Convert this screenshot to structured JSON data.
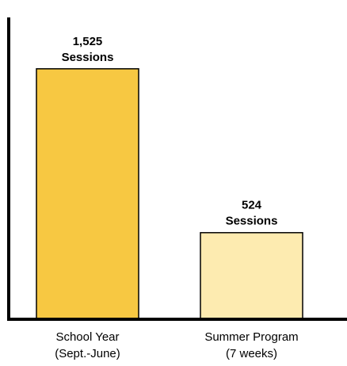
{
  "chart_data": {
    "type": "bar",
    "categories": [
      [
        "School Year",
        "(Sept.-June)"
      ],
      [
        "Summer Program",
        "(7 weeks)"
      ]
    ],
    "values": [
      1525,
      524
    ],
    "data_labels": [
      [
        "1,525",
        "Sessions"
      ],
      [
        "524",
        "Sessions"
      ]
    ],
    "colors": [
      "#F7C842",
      "#FDEBB0"
    ],
    "ylim": [
      0,
      1800
    ],
    "grid": false,
    "legend": "none"
  }
}
